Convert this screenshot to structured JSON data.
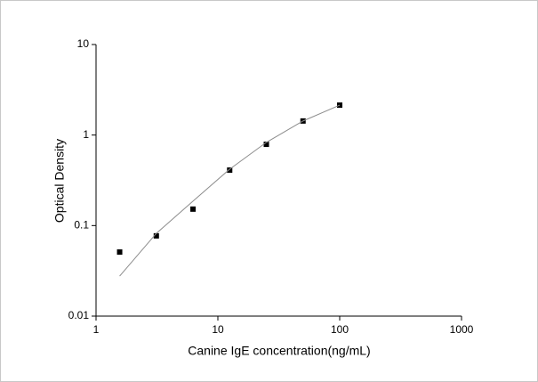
{
  "chart_data": {
    "type": "scatter",
    "x_label": "Canine IgE concentration(ng/mL)",
    "y_label": "Optical Density",
    "x": [
      1.5625,
      3.125,
      6.25,
      12.5,
      25,
      50,
      100
    ],
    "series": [
      {
        "color": "#000000",
        "marker": "square",
        "values": [
          0.051,
          0.077,
          0.152,
          0.41,
          0.79,
          1.43,
          2.14
        ]
      },
      {
        "color": "#8c8c8c",
        "marker": "line",
        "values": [
          0.0277,
          0.082,
          0.186,
          0.42,
          0.83,
          1.43,
          2.14
        ]
      }
    ],
    "xlim": [
      1,
      1000
    ],
    "ylim": [
      0.01,
      10
    ],
    "xticks": [
      1,
      10,
      100,
      1000
    ],
    "yticks": [
      0.01,
      0.1,
      1,
      10
    ],
    "log_x": true,
    "log_y": true,
    "grid": false
  }
}
